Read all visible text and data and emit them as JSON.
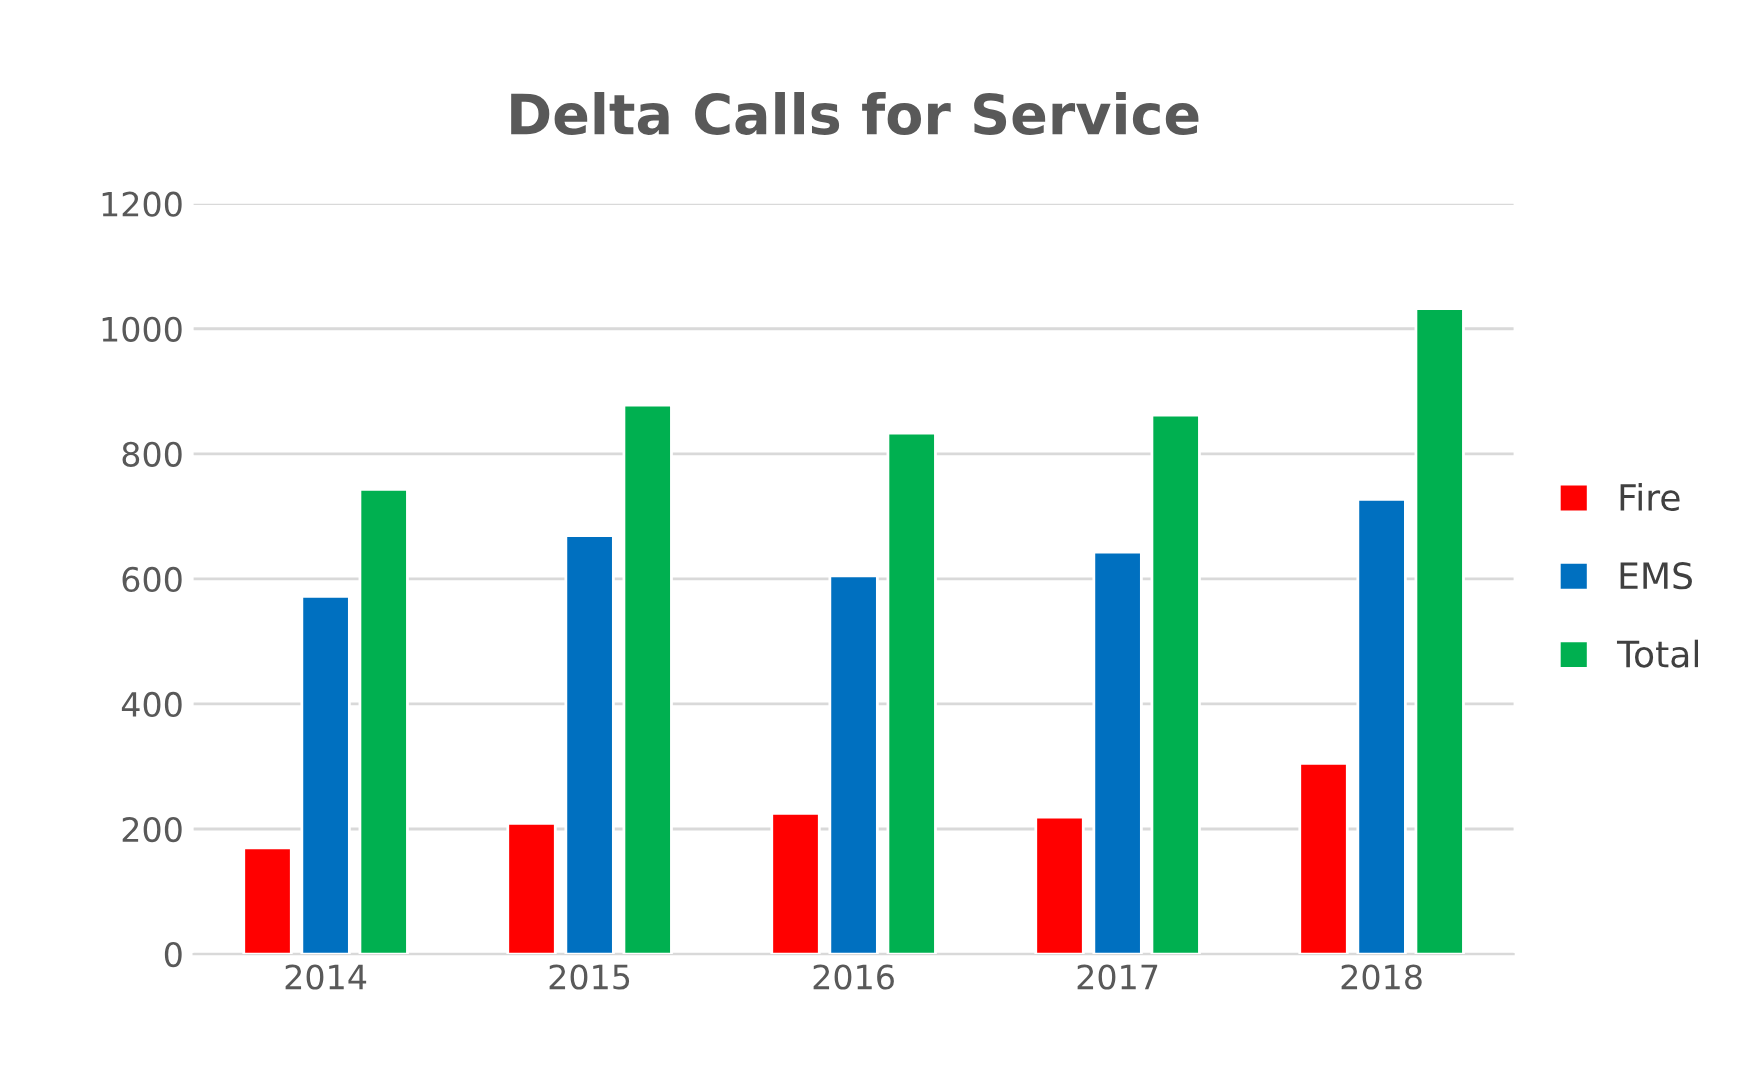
{
  "chart_data": {
    "type": "bar",
    "title": "Delta Calls for Service",
    "categories": [
      "2014",
      "2015",
      "2016",
      "2017",
      "2018"
    ],
    "series": [
      {
        "name": "Fire",
        "color": "#ff0000",
        "values": [
          170,
          209,
          225,
          219,
          305
        ]
      },
      {
        "name": "EMS",
        "color": "#0070c0",
        "values": [
          572,
          669,
          605,
          643,
          727
        ]
      },
      {
        "name": "Total",
        "color": "#00b050",
        "values": [
          743,
          878,
          833,
          862,
          1032
        ]
      }
    ],
    "ylim": [
      0,
      1200
    ],
    "yticks": [
      0,
      200,
      400,
      600,
      800,
      1000,
      1200
    ],
    "grid": "y",
    "legend": "right"
  }
}
